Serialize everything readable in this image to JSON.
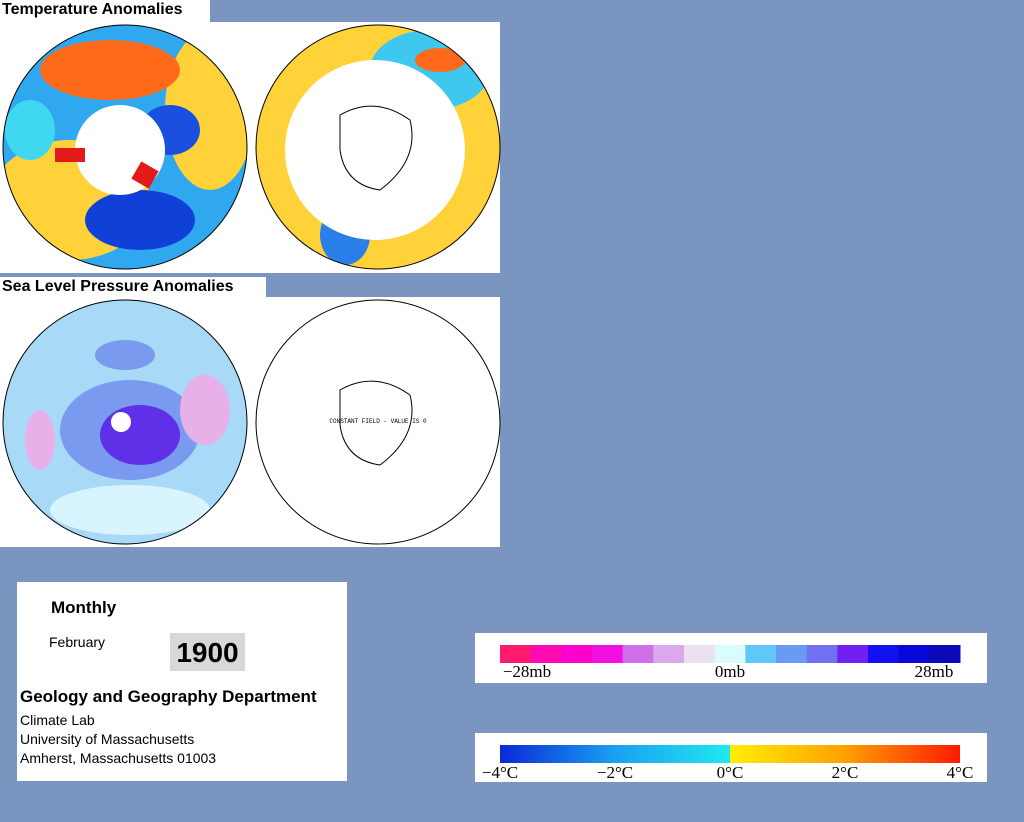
{
  "panels": [
    {
      "title": "Temperature Anomalies"
    },
    {
      "title": "Sea Level Pressure Anomalies",
      "annotation": "CONSTANT FIELD - VALUE IS 0"
    }
  ],
  "info": {
    "period": "Monthly",
    "month": "February",
    "year": "1900",
    "department": "Geology and Geography Department",
    "lines": [
      "Climate Lab",
      "University of Massachusetts",
      "Amherst, Massachusetts 01003"
    ]
  },
  "pressure_scale": {
    "labels": [
      "−28mb",
      "0mb",
      "28mb"
    ]
  },
  "temperature_scale": {
    "labels": [
      "−4°C",
      "−2°C",
      "0°C",
      "2°C",
      "4°C"
    ]
  }
}
